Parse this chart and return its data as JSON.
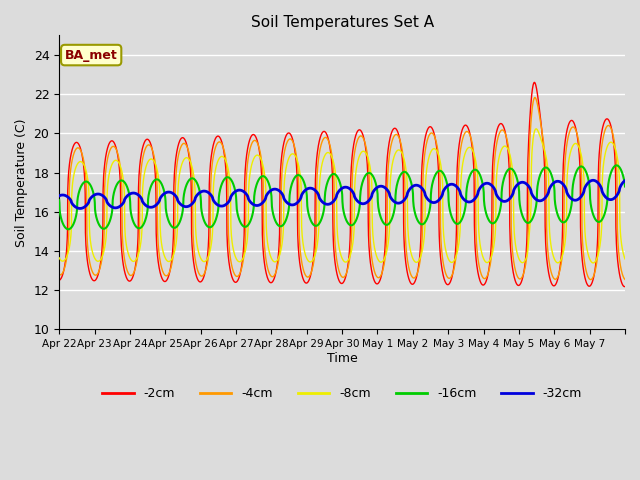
{
  "title": "Soil Temperatures Set A",
  "xlabel": "Time",
  "ylabel": "Soil Temperature (C)",
  "ylim": [
    10,
    25
  ],
  "annotation_text": "BA_met",
  "bg_color": "#dcdcdc",
  "fig_bg_color": "#dcdcdc",
  "series": [
    {
      "label": "-2cm",
      "color": "#ff0000",
      "lw": 1.0
    },
    {
      "label": "-4cm",
      "color": "#ff9900",
      "lw": 1.0
    },
    {
      "label": "-8cm",
      "color": "#eeee00",
      "lw": 1.0
    },
    {
      "label": "-16cm",
      "color": "#00cc00",
      "lw": 1.5
    },
    {
      "label": "-32cm",
      "color": "#0000dd",
      "lw": 2.0
    }
  ],
  "tick_labels": [
    "Apr 22",
    "Apr 23",
    "Apr 24",
    "Apr 25",
    "Apr 26",
    "Apr 27",
    "Apr 28",
    "Apr 29",
    "Apr 30",
    "May 1",
    "May 2",
    "May 3",
    "May 4",
    "May 5",
    "May 6",
    "May 7"
  ],
  "yticks": [
    10,
    12,
    14,
    16,
    18,
    20,
    22,
    24
  ],
  "grid_color": "#ffffff",
  "n_days": 16
}
